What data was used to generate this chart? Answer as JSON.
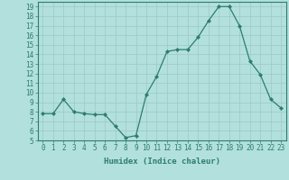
{
  "x": [
    0,
    1,
    2,
    3,
    4,
    5,
    6,
    7,
    8,
    9,
    10,
    11,
    12,
    13,
    14,
    15,
    16,
    17,
    18,
    19,
    20,
    21,
    22,
    23
  ],
  "y": [
    7.8,
    7.8,
    9.3,
    8.0,
    7.8,
    7.7,
    7.7,
    6.5,
    5.3,
    5.5,
    9.8,
    11.7,
    14.3,
    14.5,
    14.5,
    15.8,
    17.5,
    19.0,
    19.0,
    17.0,
    13.3,
    11.9,
    9.3,
    8.4
  ],
  "xlabel": "Humidex (Indice chaleur)",
  "xlim": [
    -0.5,
    23.5
  ],
  "ylim": [
    5,
    19.5
  ],
  "yticks": [
    5,
    6,
    7,
    8,
    9,
    10,
    11,
    12,
    13,
    14,
    15,
    16,
    17,
    18,
    19
  ],
  "xticks": [
    0,
    1,
    2,
    3,
    4,
    5,
    6,
    7,
    8,
    9,
    10,
    11,
    12,
    13,
    14,
    15,
    16,
    17,
    18,
    19,
    20,
    21,
    22,
    23
  ],
  "line_color": "#2d7d6e",
  "marker": "D",
  "marker_size": 2.0,
  "bg_color": "#b2e0dc",
  "grid_color": "#9ec8c4",
  "axis_color": "#2d7d6e",
  "tick_color": "#2d7d6e",
  "xlabel_color": "#2d7d6e",
  "font_size_axis": 6.5,
  "font_size_tick": 5.5
}
